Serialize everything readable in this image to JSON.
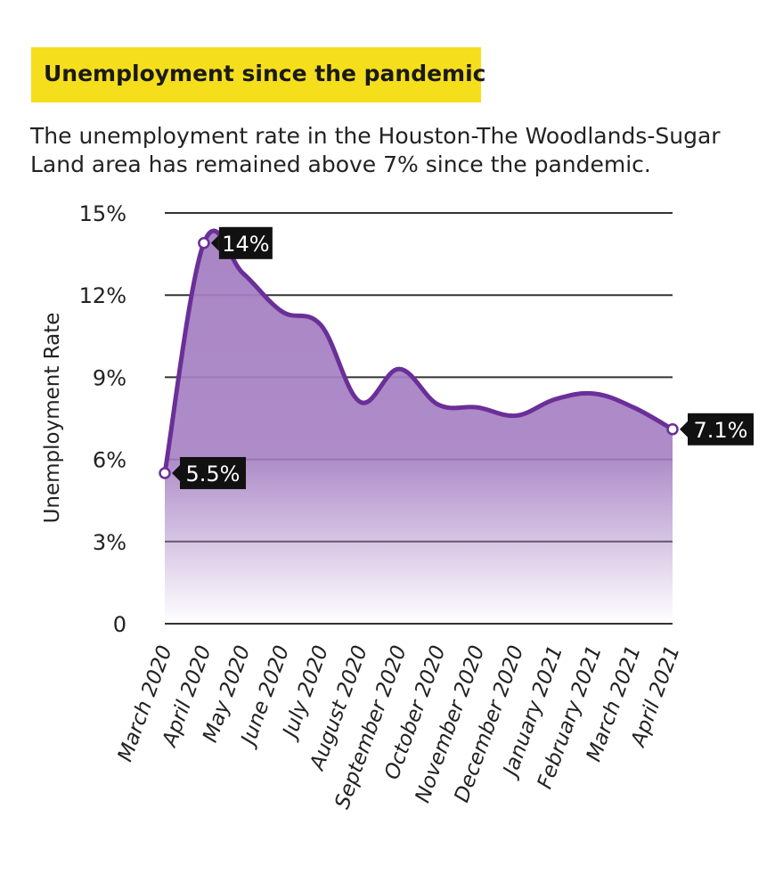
{
  "header": {
    "title": "Unemployment since the pandemic",
    "subtitle": "The unemployment rate in the Houston-The Woodlands-Sugar Land area has remained above 7% since the pandemic."
  },
  "colors": {
    "title_bg": "#f5de1c",
    "line": "#6a2f98",
    "fill": "#a57fc2",
    "label_bg": "#111111",
    "gridline": "#333333"
  },
  "chart_data": {
    "type": "area",
    "title": "Unemployment since the pandemic",
    "ylabel": "Unemployment Rate",
    "xlabel": "",
    "ylim": [
      0,
      15
    ],
    "yticks": [
      0,
      3,
      6,
      9,
      12,
      15
    ],
    "ytick_labels": [
      "0",
      "3%",
      "6%",
      "9%",
      "12%",
      "15%"
    ],
    "grid": true,
    "categories": [
      "March 2020",
      "April 2020",
      "May 2020",
      "June 2020",
      "July 2020",
      "August 2020",
      "September 2020",
      "October 2020",
      "November 2020",
      "December 2020",
      "January 2021",
      "February 2021",
      "March 2021",
      "April 2021"
    ],
    "series": [
      {
        "values": [
          5.5,
          13.9,
          12.8,
          11.4,
          10.9,
          8.1,
          9.3,
          8.0,
          7.9,
          7.6,
          8.2,
          8.4,
          7.9,
          7.1
        ]
      }
    ],
    "annotations": [
      {
        "index": 0,
        "text": "5.5%"
      },
      {
        "index": 1,
        "text": "14%"
      },
      {
        "index": 13,
        "text": "7.1%"
      }
    ]
  }
}
